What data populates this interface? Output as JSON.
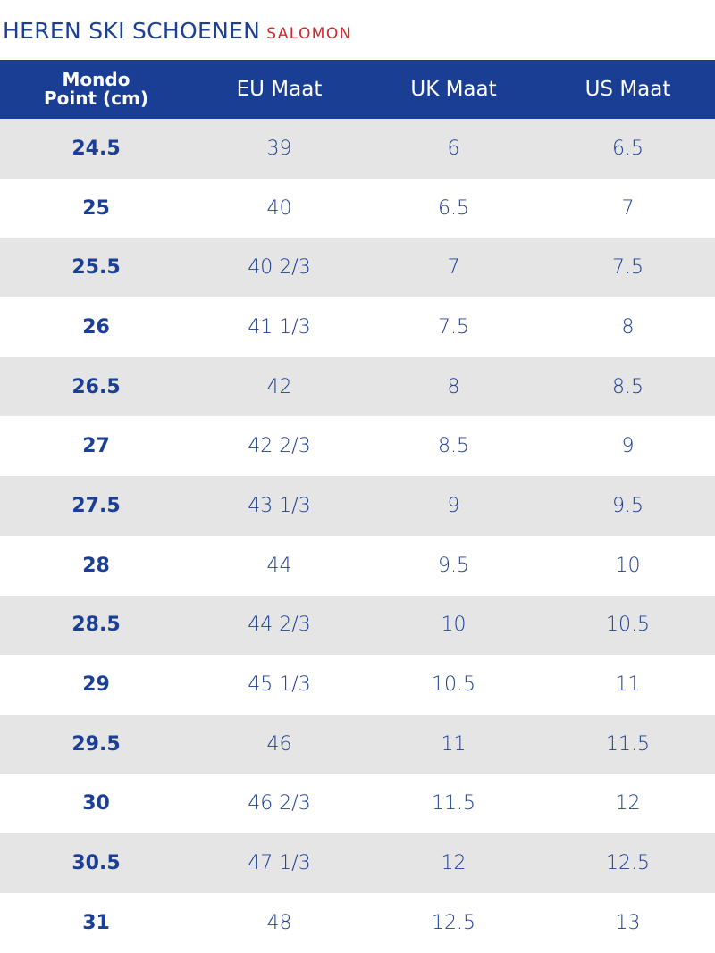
{
  "header": {
    "title": "HEREN SKI SCHOENEN",
    "brand": "SALOMON"
  },
  "colors": {
    "navy": "#1a3e93",
    "text_blue": "#1b3f95",
    "brand_red": "#d0262d",
    "row_shade": "#e5e5e6"
  },
  "table": {
    "columns": {
      "mondo_line1": "Mondo",
      "mondo_line2": "Point (cm)",
      "eu": "EU Maat",
      "uk": "UK Maat",
      "us": "US Maat"
    },
    "rows": [
      {
        "mondo": "24.5",
        "eu": "39",
        "uk": "6",
        "us": "6.5"
      },
      {
        "mondo": "25",
        "eu": "40",
        "uk": "6.5",
        "us": "7"
      },
      {
        "mondo": "25.5",
        "eu": "40 2/3",
        "uk": "7",
        "us": "7.5"
      },
      {
        "mondo": "26",
        "eu": "41 1/3",
        "uk": "7.5",
        "us": "8"
      },
      {
        "mondo": "26.5",
        "eu": "42",
        "uk": "8",
        "us": "8.5"
      },
      {
        "mondo": "27",
        "eu": "42 2/3",
        "uk": "8.5",
        "us": "9"
      },
      {
        "mondo": "27.5",
        "eu": "43 1/3",
        "uk": "9",
        "us": "9.5"
      },
      {
        "mondo": "28",
        "eu": "44",
        "uk": "9.5",
        "us": "10"
      },
      {
        "mondo": "28.5",
        "eu": "44 2/3",
        "uk": "10",
        "us": "10.5"
      },
      {
        "mondo": "29",
        "eu": "45 1/3",
        "uk": "10.5",
        "us": "11"
      },
      {
        "mondo": "29.5",
        "eu": "46",
        "uk": "11",
        "us": "11.5"
      },
      {
        "mondo": "30",
        "eu": "46 2/3",
        "uk": "11.5",
        "us": "12"
      },
      {
        "mondo": "30.5",
        "eu": "47 1/3",
        "uk": "12",
        "us": "12.5"
      },
      {
        "mondo": "31",
        "eu": "48",
        "uk": "12.5",
        "us": "13"
      }
    ]
  }
}
